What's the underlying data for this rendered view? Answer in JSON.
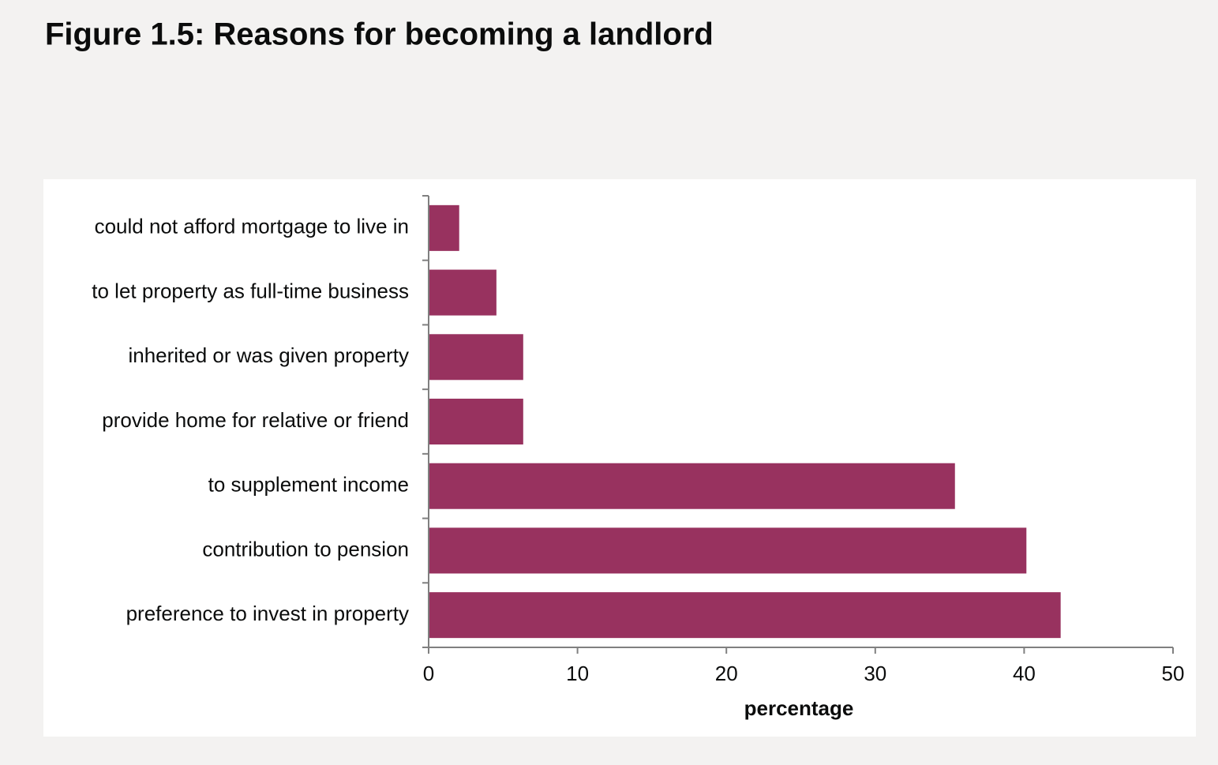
{
  "chart_data": {
    "type": "bar",
    "orientation": "horizontal",
    "title": "Figure 1.5: Reasons for becoming a landlord",
    "xlabel": "percentage",
    "categories": [
      "could not afford mortgage to live in",
      "to let property as full-time business",
      "inherited or was given property",
      "provide home for relative or friend",
      "to supplement income",
      "contribution to pension",
      "preference to invest in property"
    ],
    "values": [
      2.0,
      4.5,
      6.3,
      6.3,
      35.3,
      40.1,
      42.4
    ],
    "color": "#98325f",
    "xlim": [
      0,
      50
    ],
    "xticks": [
      0,
      10,
      20,
      30,
      40,
      50
    ],
    "grid": false
  }
}
